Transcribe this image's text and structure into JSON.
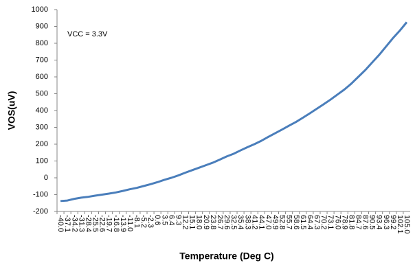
{
  "chart_data": {
    "type": "line",
    "annotation": "VCC = 3.3V",
    "x_label": "Temperature (Deg C)",
    "y_label": "VOS(uV)",
    "categories": [
      "-40.0",
      "-37.1",
      "-34.2",
      "-31.3",
      "-28.4",
      "-25.5",
      "-22.6",
      "-19.7",
      "-16.8",
      "-13.9",
      "-11.0",
      "-8.1",
      "-5.2",
      "-2.3",
      "0.6",
      "3.5",
      "6.4",
      "9.3",
      "12.2",
      "15.1",
      "18.0",
      "20.9",
      "23.8",
      "26.7",
      "29.6",
      "32.5",
      "35.4",
      "38.3",
      "41.2",
      "44.1",
      "47.0",
      "49.9",
      "52.8",
      "55.7",
      "58.6",
      "61.5",
      "64.4",
      "67.3",
      "70.2",
      "73.1",
      "76.0",
      "78.9",
      "81.8",
      "84.7",
      "87.6",
      "90.5",
      "93.4",
      "96.3",
      "99.2",
      "102.1",
      "105.0"
    ],
    "values": [
      -138,
      -135,
      -125,
      -118,
      -113,
      -106,
      -100,
      -94,
      -87,
      -78,
      -68,
      -60,
      -49,
      -38,
      -26,
      -12,
      0,
      14,
      30,
      45,
      60,
      75,
      90,
      108,
      127,
      143,
      163,
      182,
      200,
      220,
      243,
      265,
      287,
      310,
      332,
      357,
      383,
      410,
      437,
      465,
      495,
      525,
      560,
      600,
      640,
      685,
      730,
      780,
      830,
      875,
      925
    ],
    "color": "#4a7ebb",
    "ylim": [
      -200,
      1000
    ],
    "yticks": [
      -200,
      -100,
      0,
      100,
      200,
      300,
      400,
      500,
      600,
      700,
      800,
      900,
      1000
    ]
  }
}
